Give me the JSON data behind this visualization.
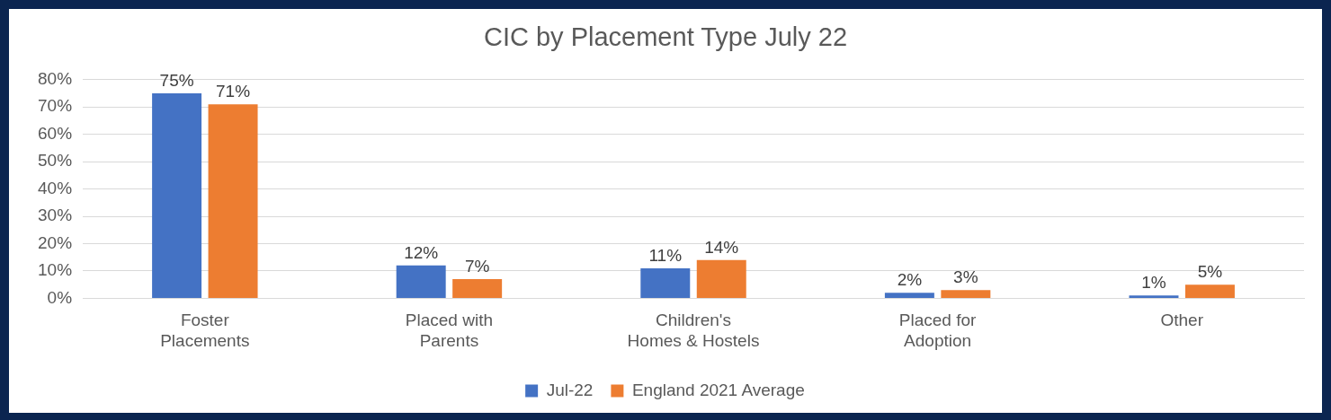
{
  "chart_data": {
    "type": "bar",
    "title": "CIC by Placement Type July 22",
    "categories": [
      "Foster\nPlacements",
      "Placed with\nParents",
      "Children's\nHomes & Hostels",
      "Placed for\nAdoption",
      "Other"
    ],
    "series": [
      {
        "name": "Jul-22",
        "color": "#4472c4",
        "values": [
          75,
          12,
          11,
          2,
          1
        ],
        "value_labels": [
          "75%",
          "12%",
          "11%",
          "2%",
          "1%"
        ]
      },
      {
        "name": "England 2021 Average",
        "color": "#ed7d31",
        "values": [
          71,
          7,
          14,
          3,
          5
        ],
        "value_labels": [
          "71%",
          "7%",
          "14%",
          "3%",
          "5%"
        ]
      }
    ],
    "ylim": [
      0,
      80
    ],
    "yticks": [
      {
        "value": 0,
        "label": "0%"
      },
      {
        "value": 10,
        "label": "10%"
      },
      {
        "value": 20,
        "label": "20%"
      },
      {
        "value": 30,
        "label": "30%"
      },
      {
        "value": 40,
        "label": "40%"
      },
      {
        "value": 50,
        "label": "50%"
      },
      {
        "value": 60,
        "label": "60%"
      },
      {
        "value": 70,
        "label": "70%"
      },
      {
        "value": 80,
        "label": "80%"
      }
    ],
    "grid": "y",
    "legend": "bottom"
  }
}
